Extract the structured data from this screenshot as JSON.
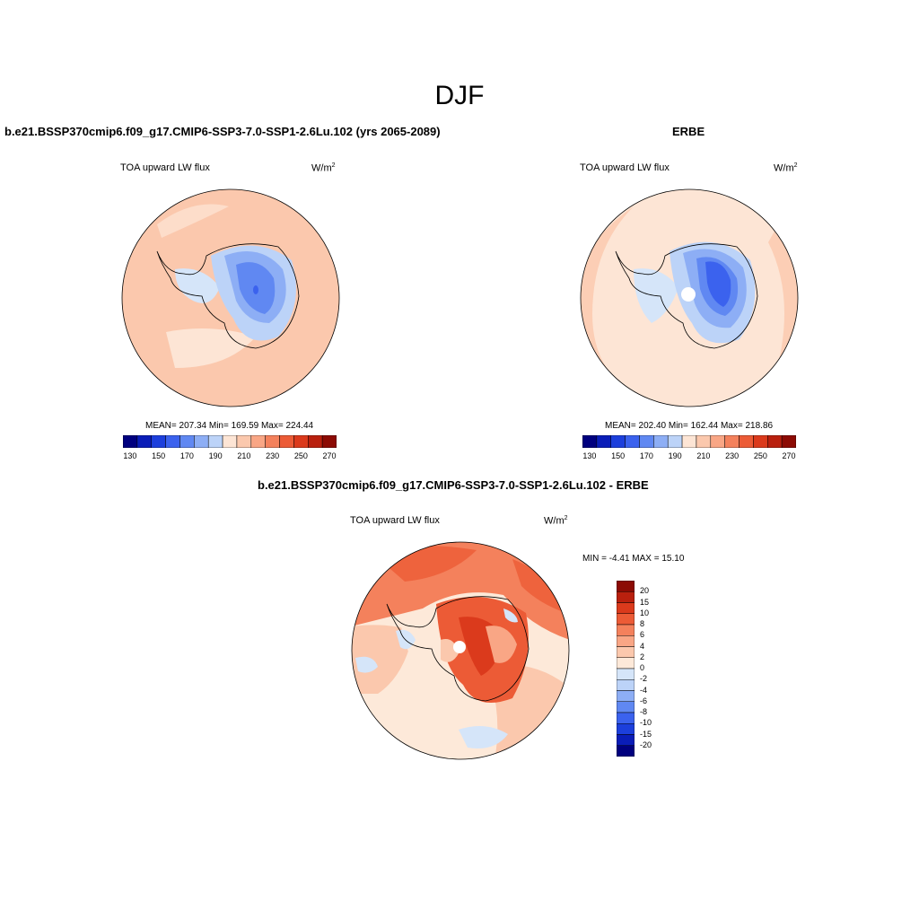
{
  "figure": {
    "season": "DJF"
  },
  "panels": {
    "model": {
      "title": "b.e21.BSSP370cmip6.f09_g17.CMIP6-SSP3-7.0-SSP1-2.6Lu.102 (yrs 2065-2089)",
      "variable": "TOA upward LW flux",
      "units_base": "W/m",
      "units_exp": "2",
      "stats": "MEAN= 207.34  Min= 169.59  Max= 224.44"
    },
    "obs": {
      "title": "ERBE",
      "variable": "TOA upward LW flux",
      "units_base": "W/m",
      "units_exp": "2",
      "stats": "MEAN= 202.40  Min= 162.44  Max= 218.86"
    },
    "diff": {
      "title": "b.e21.BSSP370cmip6.f09_g17.CMIP6-SSP3-7.0-SSP1-2.6Lu.102 - ERBE",
      "variable": "TOA upward LW flux",
      "units_base": "W/m",
      "units_exp": "2",
      "stats": "MIN =  -4.41 MAX =  15.10"
    }
  },
  "colorbar_abs": {
    "colors": [
      "#00007f",
      "#0a1db8",
      "#1c3fdc",
      "#3b62ee",
      "#6088f2",
      "#8daef5",
      "#bcd3f8",
      "#fde5d5",
      "#fbc8ad",
      "#f9a685",
      "#f4815c",
      "#ec5b36",
      "#db3a1c",
      "#b9200e",
      "#8c0b04"
    ],
    "tick_labels": [
      "130",
      "150",
      "170",
      "190",
      "210",
      "230",
      "250",
      "270"
    ]
  },
  "colorbar_diff": {
    "colors": [
      "#8c0b04",
      "#b9200e",
      "#db3a1c",
      "#ec5b36",
      "#f4815c",
      "#f9a685",
      "#fbc8ad",
      "#fde9d9",
      "#d5e5f9",
      "#bcd3f8",
      "#8daef5",
      "#6088f2",
      "#3b62ee",
      "#1c3fdc",
      "#0a1db8",
      "#00007f"
    ],
    "tick_labels": [
      "20",
      "15",
      "10",
      "8",
      "6",
      "4",
      "2",
      "0",
      "-2",
      "-4",
      "-6",
      "-8",
      "-10",
      "-15",
      "-20"
    ]
  }
}
